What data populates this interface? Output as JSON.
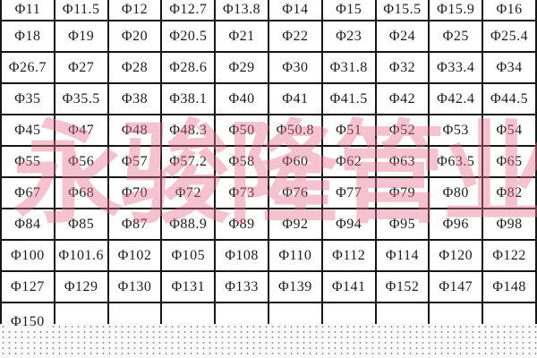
{
  "watermark": {
    "text": "永骏隆管业",
    "color": "rgba(232,112,143,0.42)"
  },
  "table": {
    "columns": 10,
    "border_color": "#161616",
    "text_color": "#1c1c1c",
    "unit_symbol": "Φ",
    "rows": [
      [
        "Φ11",
        "Φ11.5",
        "Φ12",
        "Φ12.7",
        "Φ13.8",
        "Φ14",
        "Φ15",
        "Φ15.5",
        "Φ15.9",
        "Φ16"
      ],
      [
        "Φ18",
        "Φ19",
        "Φ20",
        "Φ20.5",
        "Φ21",
        "Φ22",
        "Φ23",
        "Φ24",
        "Φ25",
        "Φ25.4"
      ],
      [
        "Φ26.7",
        "Φ27",
        "Φ28",
        "Φ28.6",
        "Φ29",
        "Φ30",
        "Φ31.8",
        "Φ32",
        "Φ33.4",
        "Φ34"
      ],
      [
        "Φ35",
        "Φ35.5",
        "Φ38",
        "Φ38.1",
        "Φ40",
        "Φ41",
        "Φ41.5",
        "Φ42",
        "Φ42.4",
        "Φ44.5"
      ],
      [
        "Φ45",
        "Φ47",
        "Φ48",
        "Φ48.3",
        "Φ50",
        "Φ50.8",
        "Φ51",
        "Φ52",
        "Φ53",
        "Φ54"
      ],
      [
        "Φ55",
        "Φ56",
        "Φ57",
        "Φ57.2",
        "Φ58",
        "Φ60",
        "Φ62",
        "Φ63",
        "Φ63.5",
        "Φ65"
      ],
      [
        "Φ67",
        "Φ68",
        "Φ70",
        "Φ72",
        "Φ73",
        "Φ76",
        "Φ77",
        "Φ79",
        "Φ80",
        "Φ82"
      ],
      [
        "Φ84",
        "Φ85",
        "Φ87",
        "Φ88.9",
        "Φ89",
        "Φ92",
        "Φ94",
        "Φ95",
        "Φ96",
        "Φ98"
      ],
      [
        "Φ100",
        "Φ101.6",
        "Φ102",
        "Φ105",
        "Φ108",
        "Φ110",
        "Φ112",
        "Φ114",
        "Φ120",
        "Φ122"
      ],
      [
        "Φ127",
        "Φ129",
        "Φ130",
        "Φ131",
        "Φ133",
        "Φ139",
        "Φ141",
        "Φ152",
        "Φ147",
        "Φ148"
      ],
      [
        "Φ150",
        "",
        "",
        "",
        "",
        "",
        "",
        "",
        "",
        ""
      ]
    ]
  }
}
